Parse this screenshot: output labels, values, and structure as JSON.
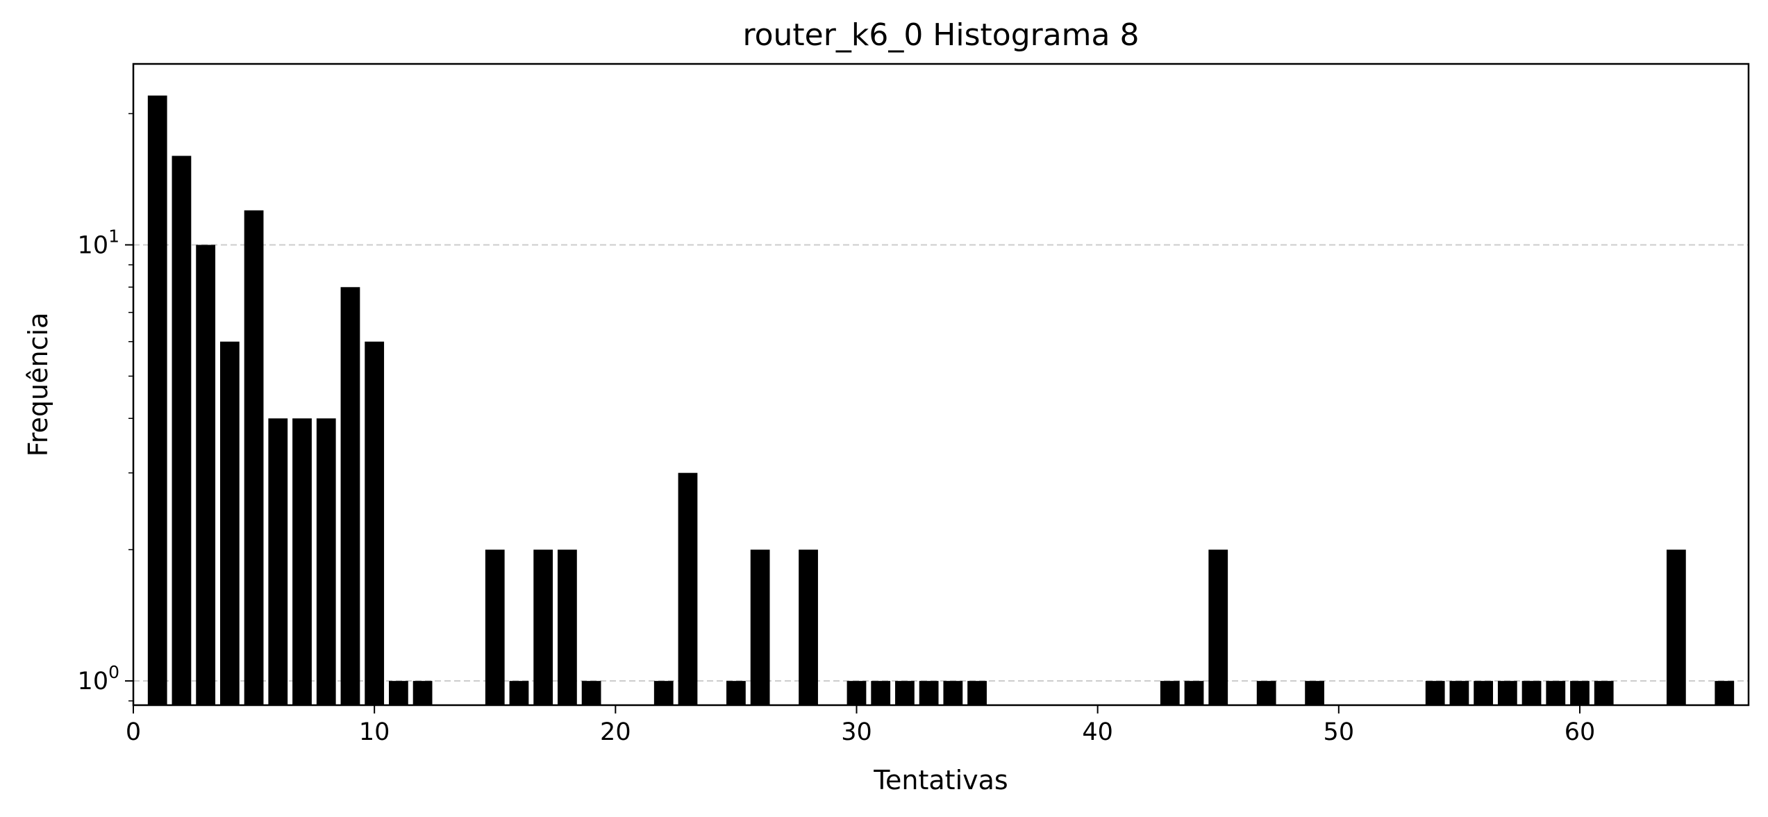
{
  "chart_data": {
    "type": "bar",
    "title": "router_k6_0 Histograma 8",
    "xlabel": "Tentativas",
    "ylabel": "Frequência",
    "y_scale": "log",
    "xlim": [
      0,
      67
    ],
    "ylim": [
      0.88,
      26
    ],
    "x_ticks": [
      0,
      10,
      20,
      30,
      40,
      50,
      60
    ],
    "y_ticks": [
      {
        "value": 1,
        "base": "10",
        "exp": "0"
      },
      {
        "value": 10,
        "base": "10",
        "exp": "1"
      }
    ],
    "grid": "horizontal dashed at major y ticks",
    "bar_color": "#000000",
    "grid_color": "#cccccc",
    "x": [
      1,
      2,
      3,
      4,
      5,
      6,
      7,
      8,
      9,
      10,
      11,
      12,
      15,
      16,
      17,
      18,
      19,
      22,
      23,
      25,
      26,
      28,
      30,
      31,
      32,
      33,
      34,
      35,
      43,
      44,
      45,
      47,
      49,
      54,
      55,
      56,
      57,
      58,
      59,
      60,
      61,
      64,
      66
    ],
    "values": [
      22,
      16,
      10,
      6,
      12,
      4,
      4,
      4,
      8,
      6,
      1,
      1,
      2,
      1,
      2,
      2,
      1,
      1,
      3,
      1,
      2,
      2,
      1,
      1,
      1,
      1,
      1,
      1,
      1,
      1,
      2,
      1,
      1,
      1,
      1,
      1,
      1,
      1,
      1,
      1,
      1,
      2,
      1
    ]
  }
}
